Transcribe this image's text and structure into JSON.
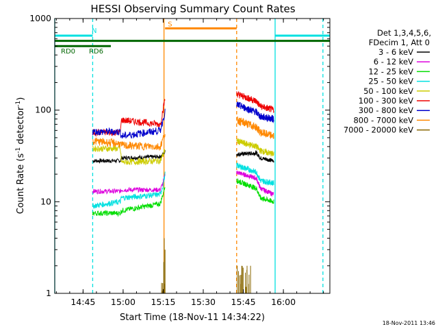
{
  "chart_data": {
    "type": "line",
    "title": "HESSI Observing Summary Count Rates",
    "xlabel": "Start Time (18-Nov-11 14:34:22)",
    "ylabel_main": "Count Rate (s",
    "ylabel_sup1": "-1",
    "ylabel_mid": " detector",
    "ylabel_sup2": "-1",
    "ylabel_end": ")",
    "x_unit": "minutes after 14:34:22 UT",
    "xlim": [
      0,
      103
    ],
    "ylim": [
      1,
      1000
    ],
    "yscale": "log",
    "x_ticks": [
      {
        "label": "14:45",
        "value": 10.6
      },
      {
        "label": "15:00",
        "value": 25.6
      },
      {
        "label": "15:15",
        "value": 40.6
      },
      {
        "label": "15:30",
        "value": 55.6
      },
      {
        "label": "15:45",
        "value": 70.6
      },
      {
        "label": "16:00",
        "value": 85.6
      }
    ],
    "y_ticks": [
      {
        "label": "1",
        "value": 1
      },
      {
        "label": "10",
        "value": 10
      },
      {
        "label": "100",
        "value": 100
      },
      {
        "label": "1000",
        "value": 1000
      }
    ],
    "legend": {
      "placement": "right",
      "header": [
        "Det 1,3,4,5,6,",
        "FDecim 1, Att 0"
      ]
    },
    "series": [
      {
        "name": "3 - 6 keV",
        "color": "#000000",
        "segments": [
          {
            "x": [
              14.2,
              24.5,
              25.0,
              39.5,
              40.5,
              41.3
            ],
            "y": [
              28,
              28,
              30,
              31,
              33,
              35
            ]
          },
          {
            "x": [
              68.1,
              75.5,
              77.0,
              82.0
            ],
            "y": [
              33,
              34,
              30,
              28
            ]
          }
        ]
      },
      {
        "name": "6 - 12 keV",
        "color": "#dd00dd",
        "segments": [
          {
            "x": [
              14.2,
              24.5,
              25.0,
              39.5,
              40.5,
              41.3
            ],
            "y": [
              13,
              13,
              13.5,
              13.5,
              16,
              20
            ]
          },
          {
            "x": [
              68.1,
              75.5,
              77.0,
              82.0
            ],
            "y": [
              21,
              18,
              14,
              12
            ]
          }
        ]
      },
      {
        "name": "12 - 25 keV",
        "color": "#00dd00",
        "segments": [
          {
            "x": [
              14.2,
              24.5,
              25.0,
              39.5,
              40.5,
              41.3
            ],
            "y": [
              7.5,
              7.5,
              8,
              9.5,
              12,
              15
            ]
          },
          {
            "x": [
              68.1,
              75.5,
              77.0,
              82.0
            ],
            "y": [
              17,
              14,
              11,
              10
            ]
          }
        ]
      },
      {
        "name": "25 - 50 keV",
        "color": "#00e0e0",
        "segments": [
          {
            "x": [
              14.2,
              24.5,
              25.0,
              39.5,
              40.5,
              41.3
            ],
            "y": [
              9,
              10,
              11,
              12,
              15,
              20
            ]
          },
          {
            "x": [
              68.1,
              75.5,
              77.0,
              82.0
            ],
            "y": [
              25,
              21,
              17,
              16
            ]
          }
        ]
      },
      {
        "name": "50 - 100 keV",
        "color": "#cccc00",
        "segments": [
          {
            "x": [
              14.2,
              24.5,
              25.0,
              39.5,
              40.5,
              41.3
            ],
            "y": [
              38,
              38,
              27,
              28,
              32,
              38
            ]
          },
          {
            "x": [
              68.1,
              75.5,
              77.0,
              82.0
            ],
            "y": [
              46,
              40,
              36,
              33
            ]
          }
        ]
      },
      {
        "name": "100 - 300 keV",
        "color": "#ee0000",
        "segments": [
          {
            "x": [
              14.2,
              24.5,
              25.0,
              39.5,
              40.5,
              41.3
            ],
            "y": [
              57,
              57,
              78,
              70,
              100,
              135
            ]
          },
          {
            "x": [
              68.1,
              75.5,
              77.0,
              82.0
            ],
            "y": [
              150,
              125,
              110,
              100
            ]
          }
        ]
      },
      {
        "name": "300 - 800 keV",
        "color": "#0000cc",
        "segments": [
          {
            "x": [
              14.2,
              24.5,
              25.0,
              39.5,
              40.5,
              41.3
            ],
            "y": [
              58,
              58,
              52,
              60,
              78,
              95
            ]
          },
          {
            "x": [
              68.1,
              75.5,
              77.0,
              82.0
            ],
            "y": [
              115,
              95,
              85,
              80
            ]
          }
        ]
      },
      {
        "name": "800 - 7000 keV",
        "color": "#ff8800",
        "segments": [
          {
            "x": [
              14.2,
              24.5,
              25.0,
              39.5,
              40.5,
              41.3
            ],
            "y": [
              46,
              43,
              41,
              40,
              48,
              57
            ]
          },
          {
            "x": [
              68.1,
              75.5,
              77.0,
              82.0
            ],
            "y": [
              78,
              65,
              57,
              52
            ]
          }
        ]
      },
      {
        "name": "7000 - 20000 keV",
        "color": "#886600",
        "segments": [
          {
            "x": [
              40.0,
              40.8,
              41.0,
              41.3
            ],
            "y": [
              1.3,
              2.2,
              4.0,
              3.0
            ]
          },
          {
            "x": [
              68.3,
              70.0,
              72.0,
              73.3
            ],
            "y": [
              2.0,
              2.0,
              2.0,
              2.0
            ]
          }
        ]
      }
    ],
    "annotations": {
      "flags": [
        {
          "label": "N",
          "color": "#00e0e0",
          "x_start": 0,
          "x_end": 14.2,
          "y": 650
        },
        {
          "label": "",
          "color": "#00e0e0",
          "x_start": 82.5,
          "x_end": 103,
          "y": 650
        },
        {
          "label": "S",
          "color": "#ff8800",
          "x_start": 41.3,
          "x_end": 68.1,
          "y": 780
        },
        {
          "label": "",
          "color": "#006600",
          "x_start": 0,
          "x_end": 103,
          "y": 570
        },
        {
          "label": "RD0",
          "color": "#006600",
          "x_start": 0,
          "x_end": 10,
          "y": 500
        },
        {
          "label": "RD6",
          "color": "#006600",
          "x_start": 10,
          "x_end": 21.0,
          "y": 500
        }
      ],
      "vlines": [
        {
          "x": 0,
          "color": "#00e0e0",
          "style": "solid"
        },
        {
          "x": 14.2,
          "color": "#00e0e0",
          "style": "dashed"
        },
        {
          "x": 40.9,
          "color": "#ff8800",
          "style": "solid"
        },
        {
          "x": 68.1,
          "color": "#ff8800",
          "style": "dashed"
        },
        {
          "x": 82.5,
          "color": "#00e0e0",
          "style": "solid"
        },
        {
          "x": 100.4,
          "color": "#00e0e0",
          "style": "dashed"
        }
      ]
    },
    "grid": false
  },
  "footer": {
    "timestamp": "18-Nov-2011 13:46"
  }
}
